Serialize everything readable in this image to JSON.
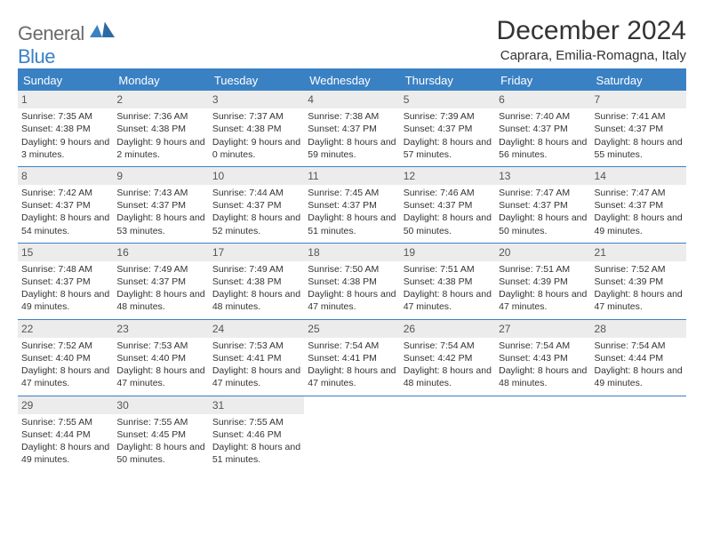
{
  "logo": {
    "text1": "General",
    "text2": "Blue"
  },
  "title": "December 2024",
  "location": "Caprara, Emilia-Romagna, Italy",
  "colors": {
    "accent": "#3a81c4",
    "daynum_bg": "#ececec",
    "text": "#333333",
    "logo_gray": "#6b6b6b"
  },
  "weekdays": [
    "Sunday",
    "Monday",
    "Tuesday",
    "Wednesday",
    "Thursday",
    "Friday",
    "Saturday"
  ],
  "weeks": [
    [
      {
        "n": "1",
        "sr": "Sunrise: 7:35 AM",
        "ss": "Sunset: 4:38 PM",
        "dl": "Daylight: 9 hours and 3 minutes."
      },
      {
        "n": "2",
        "sr": "Sunrise: 7:36 AM",
        "ss": "Sunset: 4:38 PM",
        "dl": "Daylight: 9 hours and 2 minutes."
      },
      {
        "n": "3",
        "sr": "Sunrise: 7:37 AM",
        "ss": "Sunset: 4:38 PM",
        "dl": "Daylight: 9 hours and 0 minutes."
      },
      {
        "n": "4",
        "sr": "Sunrise: 7:38 AM",
        "ss": "Sunset: 4:37 PM",
        "dl": "Daylight: 8 hours and 59 minutes."
      },
      {
        "n": "5",
        "sr": "Sunrise: 7:39 AM",
        "ss": "Sunset: 4:37 PM",
        "dl": "Daylight: 8 hours and 57 minutes."
      },
      {
        "n": "6",
        "sr": "Sunrise: 7:40 AM",
        "ss": "Sunset: 4:37 PM",
        "dl": "Daylight: 8 hours and 56 minutes."
      },
      {
        "n": "7",
        "sr": "Sunrise: 7:41 AM",
        "ss": "Sunset: 4:37 PM",
        "dl": "Daylight: 8 hours and 55 minutes."
      }
    ],
    [
      {
        "n": "8",
        "sr": "Sunrise: 7:42 AM",
        "ss": "Sunset: 4:37 PM",
        "dl": "Daylight: 8 hours and 54 minutes."
      },
      {
        "n": "9",
        "sr": "Sunrise: 7:43 AM",
        "ss": "Sunset: 4:37 PM",
        "dl": "Daylight: 8 hours and 53 minutes."
      },
      {
        "n": "10",
        "sr": "Sunrise: 7:44 AM",
        "ss": "Sunset: 4:37 PM",
        "dl": "Daylight: 8 hours and 52 minutes."
      },
      {
        "n": "11",
        "sr": "Sunrise: 7:45 AM",
        "ss": "Sunset: 4:37 PM",
        "dl": "Daylight: 8 hours and 51 minutes."
      },
      {
        "n": "12",
        "sr": "Sunrise: 7:46 AM",
        "ss": "Sunset: 4:37 PM",
        "dl": "Daylight: 8 hours and 50 minutes."
      },
      {
        "n": "13",
        "sr": "Sunrise: 7:47 AM",
        "ss": "Sunset: 4:37 PM",
        "dl": "Daylight: 8 hours and 50 minutes."
      },
      {
        "n": "14",
        "sr": "Sunrise: 7:47 AM",
        "ss": "Sunset: 4:37 PM",
        "dl": "Daylight: 8 hours and 49 minutes."
      }
    ],
    [
      {
        "n": "15",
        "sr": "Sunrise: 7:48 AM",
        "ss": "Sunset: 4:37 PM",
        "dl": "Daylight: 8 hours and 49 minutes."
      },
      {
        "n": "16",
        "sr": "Sunrise: 7:49 AM",
        "ss": "Sunset: 4:37 PM",
        "dl": "Daylight: 8 hours and 48 minutes."
      },
      {
        "n": "17",
        "sr": "Sunrise: 7:49 AM",
        "ss": "Sunset: 4:38 PM",
        "dl": "Daylight: 8 hours and 48 minutes."
      },
      {
        "n": "18",
        "sr": "Sunrise: 7:50 AM",
        "ss": "Sunset: 4:38 PM",
        "dl": "Daylight: 8 hours and 47 minutes."
      },
      {
        "n": "19",
        "sr": "Sunrise: 7:51 AM",
        "ss": "Sunset: 4:38 PM",
        "dl": "Daylight: 8 hours and 47 minutes."
      },
      {
        "n": "20",
        "sr": "Sunrise: 7:51 AM",
        "ss": "Sunset: 4:39 PM",
        "dl": "Daylight: 8 hours and 47 minutes."
      },
      {
        "n": "21",
        "sr": "Sunrise: 7:52 AM",
        "ss": "Sunset: 4:39 PM",
        "dl": "Daylight: 8 hours and 47 minutes."
      }
    ],
    [
      {
        "n": "22",
        "sr": "Sunrise: 7:52 AM",
        "ss": "Sunset: 4:40 PM",
        "dl": "Daylight: 8 hours and 47 minutes."
      },
      {
        "n": "23",
        "sr": "Sunrise: 7:53 AM",
        "ss": "Sunset: 4:40 PM",
        "dl": "Daylight: 8 hours and 47 minutes."
      },
      {
        "n": "24",
        "sr": "Sunrise: 7:53 AM",
        "ss": "Sunset: 4:41 PM",
        "dl": "Daylight: 8 hours and 47 minutes."
      },
      {
        "n": "25",
        "sr": "Sunrise: 7:54 AM",
        "ss": "Sunset: 4:41 PM",
        "dl": "Daylight: 8 hours and 47 minutes."
      },
      {
        "n": "26",
        "sr": "Sunrise: 7:54 AM",
        "ss": "Sunset: 4:42 PM",
        "dl": "Daylight: 8 hours and 48 minutes."
      },
      {
        "n": "27",
        "sr": "Sunrise: 7:54 AM",
        "ss": "Sunset: 4:43 PM",
        "dl": "Daylight: 8 hours and 48 minutes."
      },
      {
        "n": "28",
        "sr": "Sunrise: 7:54 AM",
        "ss": "Sunset: 4:44 PM",
        "dl": "Daylight: 8 hours and 49 minutes."
      }
    ],
    [
      {
        "n": "29",
        "sr": "Sunrise: 7:55 AM",
        "ss": "Sunset: 4:44 PM",
        "dl": "Daylight: 8 hours and 49 minutes."
      },
      {
        "n": "30",
        "sr": "Sunrise: 7:55 AM",
        "ss": "Sunset: 4:45 PM",
        "dl": "Daylight: 8 hours and 50 minutes."
      },
      {
        "n": "31",
        "sr": "Sunrise: 7:55 AM",
        "ss": "Sunset: 4:46 PM",
        "dl": "Daylight: 8 hours and 51 minutes."
      },
      null,
      null,
      null,
      null
    ]
  ]
}
